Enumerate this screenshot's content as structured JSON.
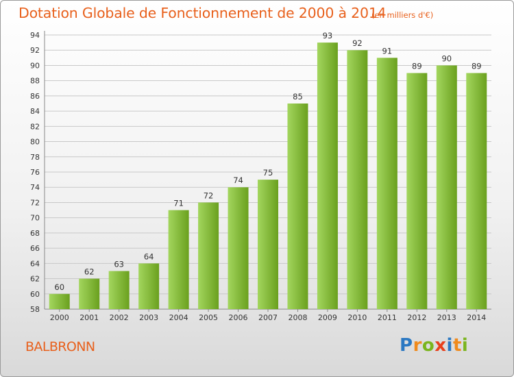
{
  "header": {
    "title": "Dotation Globale de Fonctionnement de 2000 à 2014",
    "unit": "(en milliers d'€)"
  },
  "commune": "BALBRONN",
  "logo": {
    "letters": [
      "P",
      "r",
      "o",
      "x",
      "i",
      "t",
      "i"
    ],
    "colors": [
      "#2b78c2",
      "#f08a1c",
      "#7ab51d",
      "#e8401c",
      "#2b78c2",
      "#f08a1c",
      "#7ab51d"
    ]
  },
  "colors": {
    "bar_light": "#a3d65e",
    "bar_dark": "#6aa01e",
    "grid": "#c8c8c8",
    "title": "#e8601c"
  },
  "chart_data": {
    "type": "bar",
    "title": "Dotation Globale de Fonctionnement de 2000 à 2014",
    "ylabel": "",
    "xlabel": "",
    "categories": [
      "2000",
      "2001",
      "2002",
      "2003",
      "2004",
      "2005",
      "2006",
      "2007",
      "2008",
      "2009",
      "2010",
      "2011",
      "2012",
      "2013",
      "2014"
    ],
    "values": [
      60,
      62,
      63,
      64,
      71,
      72,
      74,
      75,
      85,
      93,
      92,
      91,
      89,
      90,
      89
    ],
    "ylim": [
      58,
      94
    ],
    "ytick_step": 2,
    "grid": true
  }
}
